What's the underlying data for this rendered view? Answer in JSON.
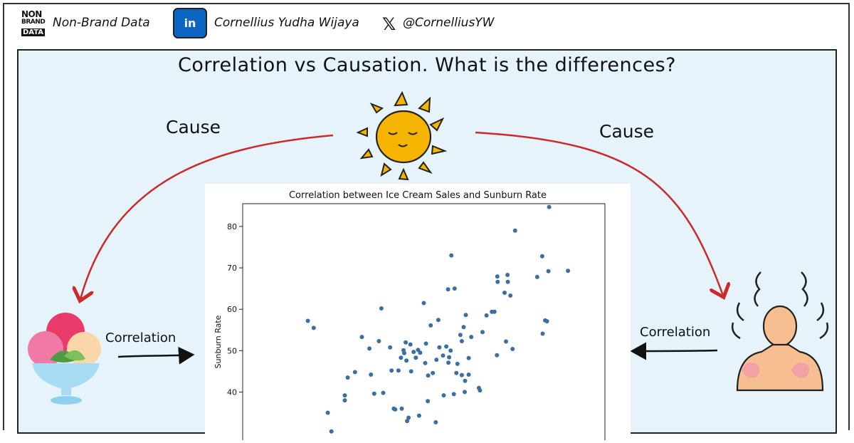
{
  "header": {
    "logo_lines": [
      "NON",
      "BRAND",
      "DATA"
    ],
    "brand_name": "Non-Brand Data",
    "linkedin_icon_label": "in",
    "author_name": "Cornellius Yudha Wijaya",
    "x_handle": "@CornelliusYW"
  },
  "diagram": {
    "title": "Correlation vs Causation. What is the differences?",
    "cause_left": "Cause",
    "cause_right": "Cause",
    "correlation_left": "Correlation",
    "correlation_right": "Correlation",
    "icons": [
      "sun-icon",
      "ice-cream-icon",
      "sunburn-person-icon"
    ],
    "colors": {
      "panel": "#e6f3fb",
      "arrow_cause": "#cc2a2a",
      "sun": "#f5b400",
      "linkedin": "#0a66c2",
      "points": "#3a6ea5"
    }
  },
  "chart_data": {
    "type": "scatter",
    "title": "Correlation between Ice Cream Sales and Sunburn Rate",
    "xlabel": "",
    "ylabel": "Sunburn Rate",
    "yticks": [
      40,
      50,
      60,
      70,
      80
    ],
    "ylim": [
      27,
      85.5
    ],
    "xlim": [
      0,
      100
    ],
    "grid": false,
    "points": [
      [
        18,
        57.2
      ],
      [
        19.6,
        55.5
      ],
      [
        23.5,
        35
      ],
      [
        24.5,
        30.5
      ],
      [
        28.2,
        39.2
      ],
      [
        28.2,
        38
      ],
      [
        29,
        43.5
      ],
      [
        31,
        44.8
      ],
      [
        32.9,
        53.3
      ],
      [
        35,
        50.5
      ],
      [
        35.4,
        44.2
      ],
      [
        36.3,
        39.6
      ],
      [
        37.6,
        52.3
      ],
      [
        38.3,
        60.2
      ],
      [
        38.8,
        39.8
      ],
      [
        40.7,
        50.8
      ],
      [
        41.1,
        45.2
      ],
      [
        41.7,
        36
      ],
      [
        42.1,
        35.8
      ],
      [
        43,
        45.2
      ],
      [
        43.7,
        48.3
      ],
      [
        43.9,
        36
      ],
      [
        44.4,
        50.1
      ],
      [
        44.6,
        49.4
      ],
      [
        45,
        52
      ],
      [
        45.2,
        47.6
      ],
      [
        45.4,
        33
      ],
      [
        45.8,
        33.8
      ],
      [
        46.3,
        51.5
      ],
      [
        46.5,
        45
      ],
      [
        47.2,
        49.7
      ],
      [
        47.8,
        48.3
      ],
      [
        48.4,
        50.2
      ],
      [
        48.7,
        34.3
      ],
      [
        49,
        49.5
      ],
      [
        50,
        61.5
      ],
      [
        50.4,
        47
      ],
      [
        50.6,
        51.7
      ],
      [
        51.1,
        37.8
      ],
      [
        51.2,
        44
      ],
      [
        51.9,
        56.1
      ],
      [
        52.5,
        44.6
      ],
      [
        53.3,
        32.7
      ],
      [
        53.5,
        47.8
      ],
      [
        54,
        57.4
      ],
      [
        54.3,
        50.8
      ],
      [
        55.3,
        48.8
      ],
      [
        55.5,
        39.2
      ],
      [
        56.2,
        51
      ],
      [
        56.7,
        64.8
      ],
      [
        56.8,
        47.1
      ],
      [
        57,
        48.4
      ],
      [
        57.4,
        50
      ],
      [
        57.6,
        73
      ],
      [
        58.3,
        39.5
      ],
      [
        58.5,
        65
      ],
      [
        59,
        44.6
      ],
      [
        59.3,
        46.8
      ],
      [
        60.1,
        53.8
      ],
      [
        60.5,
        52.3
      ],
      [
        60.5,
        44.1
      ],
      [
        61,
        55.7
      ],
      [
        61.3,
        40
      ],
      [
        61.4,
        42.7
      ],
      [
        61.6,
        58.6
      ],
      [
        62.4,
        48.2
      ],
      [
        62.4,
        44.2
      ],
      [
        63.1,
        53.3
      ],
      [
        65.2,
        41
      ],
      [
        65.5,
        40.4
      ],
      [
        66.2,
        54.5
      ],
      [
        67.3,
        58.5
      ],
      [
        68.8,
        59.4
      ],
      [
        69.5,
        59.4
      ],
      [
        70.2,
        48.9
      ],
      [
        70.3,
        67.9
      ],
      [
        70.4,
        66.6
      ],
      [
        72.3,
        64
      ],
      [
        72.7,
        52.2
      ],
      [
        73.1,
        68.3
      ],
      [
        73.2,
        66.6
      ],
      [
        73.9,
        63.3
      ],
      [
        74.5,
        50.4
      ],
      [
        75.2,
        79
      ],
      [
        81.3,
        67.8
      ],
      [
        82.7,
        72.8
      ],
      [
        82.8,
        54.1
      ],
      [
        83.5,
        57.3
      ],
      [
        84,
        57.1
      ],
      [
        84.4,
        69.2
      ],
      [
        84.6,
        84.7
      ],
      [
        89.8,
        69.3
      ]
    ]
  }
}
